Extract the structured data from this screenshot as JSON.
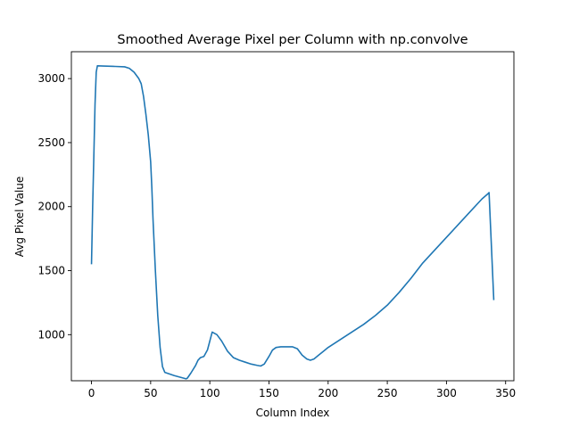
{
  "chart_data": {
    "type": "line",
    "title": "Smoothed Average Pixel per Column with np.convolve",
    "xlabel": "Column Index",
    "ylabel": "Avg Pixel Value",
    "xlim": [
      -17,
      357
    ],
    "ylim": [
      640,
      3210
    ],
    "xticks": [
      0,
      50,
      100,
      150,
      200,
      250,
      300,
      350
    ],
    "yticks": [
      1000,
      1500,
      2000,
      2500,
      3000
    ],
    "grid": false,
    "line_color": "#1f77b4",
    "series": [
      {
        "x": [
          0,
          1,
          2,
          3,
          4,
          5,
          10,
          20,
          28,
          32,
          36,
          40,
          42,
          44,
          46,
          48,
          50,
          51,
          52,
          54,
          56,
          58,
          60,
          62,
          70,
          80,
          81,
          84,
          88,
          90,
          92,
          95,
          98,
          100,
          102,
          106,
          110,
          115,
          120,
          125,
          130,
          135,
          140,
          143,
          146,
          150,
          153,
          156,
          160,
          165,
          170,
          174,
          178,
          182,
          185,
          188,
          192,
          196,
          200,
          210,
          220,
          230,
          240,
          250,
          260,
          270,
          280,
          290,
          300,
          310,
          320,
          330,
          335,
          336,
          340
        ],
        "y": [
          1550,
          2000,
          2400,
          2800,
          3050,
          3100,
          3098,
          3095,
          3092,
          3080,
          3050,
          3000,
          2960,
          2860,
          2720,
          2560,
          2350,
          2150,
          1900,
          1500,
          1150,
          900,
          750,
          705,
          680,
          655,
          660,
          700,
          760,
          800,
          820,
          830,
          880,
          950,
          1020,
          1000,
          950,
          870,
          820,
          800,
          785,
          770,
          760,
          755,
          770,
          830,
          880,
          900,
          905,
          905,
          905,
          890,
          840,
          810,
          800,
          810,
          840,
          870,
          900,
          960,
          1020,
          1080,
          1150,
          1230,
          1330,
          1440,
          1560,
          1660,
          1760,
          1860,
          1960,
          2060,
          2100,
          2110,
          1270
        ]
      }
    ]
  }
}
